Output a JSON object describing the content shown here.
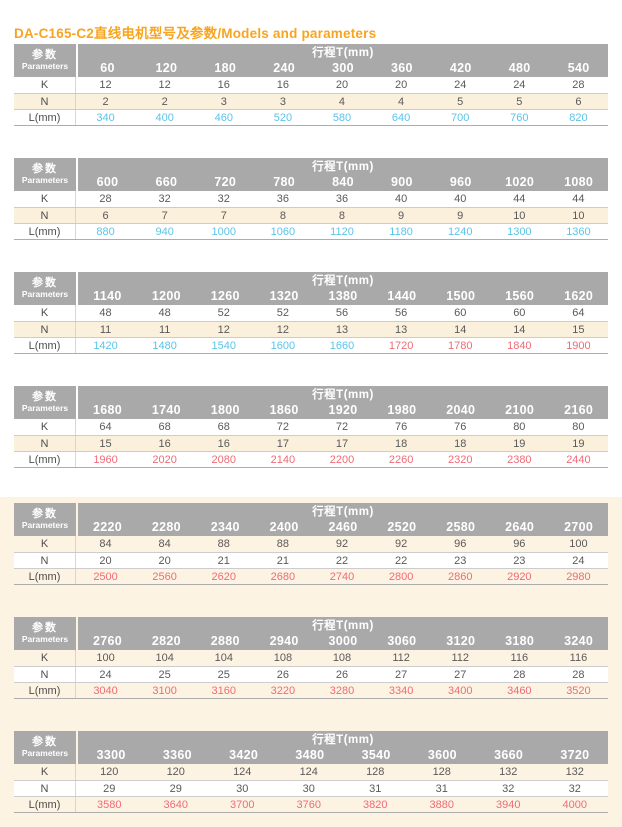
{
  "page": {
    "title": "DA-C165-C2直线电机型号及参数/Models and parameters"
  },
  "colors": {
    "title_orange": "#F7A520",
    "header_gray": "#A9A9A9",
    "page_cream": "#FDF3E3",
    "stripe_cream": "#FAF0DC",
    "value_blue": "#5BC4E9",
    "value_red": "#EF6B76"
  },
  "header": {
    "param_cn": "参数",
    "param_en": "Parameters",
    "stroke_label": "行程T(mm)"
  },
  "row_labels": {
    "k": "K",
    "n": "N",
    "l": "L(mm)"
  },
  "tables": [
    {
      "strokes": [
        "60",
        "120",
        "180",
        "240",
        "300",
        "360",
        "420",
        "480",
        "540"
      ],
      "K": [
        "12",
        "12",
        "16",
        "16",
        "20",
        "20",
        "24",
        "24",
        "28"
      ],
      "N": [
        "2",
        "2",
        "3",
        "3",
        "4",
        "4",
        "5",
        "5",
        "6"
      ],
      "L": [
        "340",
        "400",
        "460",
        "520",
        "580",
        "640",
        "700",
        "760",
        "820"
      ],
      "L_colors": [
        "blue",
        "blue",
        "blue",
        "blue",
        "blue",
        "blue",
        "blue",
        "blue",
        "blue"
      ],
      "n_row_bg": "cream"
    },
    {
      "strokes": [
        "600",
        "660",
        "720",
        "780",
        "840",
        "900",
        "960",
        "1020",
        "1080"
      ],
      "K": [
        "28",
        "32",
        "32",
        "36",
        "36",
        "40",
        "40",
        "44",
        "44"
      ],
      "N": [
        "6",
        "7",
        "7",
        "8",
        "8",
        "9",
        "9",
        "10",
        "10"
      ],
      "L": [
        "880",
        "940",
        "1000",
        "1060",
        "1120",
        "1180",
        "1240",
        "1300",
        "1360"
      ],
      "L_colors": [
        "blue",
        "blue",
        "blue",
        "blue",
        "blue",
        "blue",
        "blue",
        "blue",
        "blue"
      ],
      "n_row_bg": "cream"
    },
    {
      "strokes": [
        "1140",
        "1200",
        "1260",
        "1320",
        "1380",
        "1440",
        "1500",
        "1560",
        "1620"
      ],
      "K": [
        "48",
        "48",
        "52",
        "52",
        "56",
        "56",
        "60",
        "60",
        "64"
      ],
      "N": [
        "11",
        "11",
        "12",
        "12",
        "13",
        "13",
        "14",
        "14",
        "15"
      ],
      "L": [
        "1420",
        "1480",
        "1540",
        "1600",
        "1660",
        "1720",
        "1780",
        "1840",
        "1900"
      ],
      "L_colors": [
        "blue",
        "blue",
        "blue",
        "blue",
        "blue",
        "red",
        "red",
        "red",
        "red"
      ],
      "n_row_bg": "cream"
    },
    {
      "strokes": [
        "1680",
        "1740",
        "1800",
        "1860",
        "1920",
        "1980",
        "2040",
        "2100",
        "2160"
      ],
      "K": [
        "64",
        "68",
        "68",
        "72",
        "72",
        "76",
        "76",
        "80",
        "80"
      ],
      "N": [
        "15",
        "16",
        "16",
        "17",
        "17",
        "18",
        "18",
        "19",
        "19"
      ],
      "L": [
        "1960",
        "2020",
        "2080",
        "2140",
        "2200",
        "2260",
        "2320",
        "2380",
        "2440"
      ],
      "L_colors": [
        "red",
        "red",
        "red",
        "red",
        "red",
        "red",
        "red",
        "red",
        "red"
      ],
      "n_row_bg": "cream"
    },
    {
      "strokes": [
        "2220",
        "2280",
        "2340",
        "2400",
        "2460",
        "2520",
        "2580",
        "2640",
        "2700"
      ],
      "K": [
        "84",
        "84",
        "88",
        "88",
        "92",
        "92",
        "96",
        "96",
        "100"
      ],
      "N": [
        "20",
        "20",
        "21",
        "21",
        "22",
        "22",
        "23",
        "23",
        "24"
      ],
      "L": [
        "2500",
        "2560",
        "2620",
        "2680",
        "2740",
        "2800",
        "2860",
        "2920",
        "2980"
      ],
      "L_colors": [
        "red",
        "red",
        "red",
        "red",
        "red",
        "red",
        "red",
        "red",
        "red"
      ],
      "n_row_bg": "white"
    },
    {
      "strokes": [
        "2760",
        "2820",
        "2880",
        "2940",
        "3000",
        "3060",
        "3120",
        "3180",
        "3240"
      ],
      "K": [
        "100",
        "104",
        "104",
        "108",
        "108",
        "112",
        "112",
        "116",
        "116"
      ],
      "N": [
        "24",
        "25",
        "25",
        "26",
        "26",
        "27",
        "27",
        "28",
        "28"
      ],
      "L": [
        "3040",
        "3100",
        "3160",
        "3220",
        "3280",
        "3340",
        "3400",
        "3460",
        "3520"
      ],
      "L_colors": [
        "red",
        "red",
        "red",
        "red",
        "red",
        "red",
        "red",
        "red",
        "red"
      ],
      "n_row_bg": "white"
    },
    {
      "strokes": [
        "3300",
        "3360",
        "3420",
        "3480",
        "3540",
        "3600",
        "3660",
        "3720"
      ],
      "K": [
        "120",
        "120",
        "124",
        "124",
        "128",
        "128",
        "132",
        "132"
      ],
      "N": [
        "29",
        "29",
        "30",
        "30",
        "31",
        "31",
        "32",
        "32"
      ],
      "L": [
        "3580",
        "3640",
        "3700",
        "3760",
        "3820",
        "3880",
        "3940",
        "4000"
      ],
      "L_colors": [
        "red",
        "red",
        "red",
        "red",
        "red",
        "red",
        "red",
        "red"
      ],
      "n_row_bg": "white"
    }
  ]
}
